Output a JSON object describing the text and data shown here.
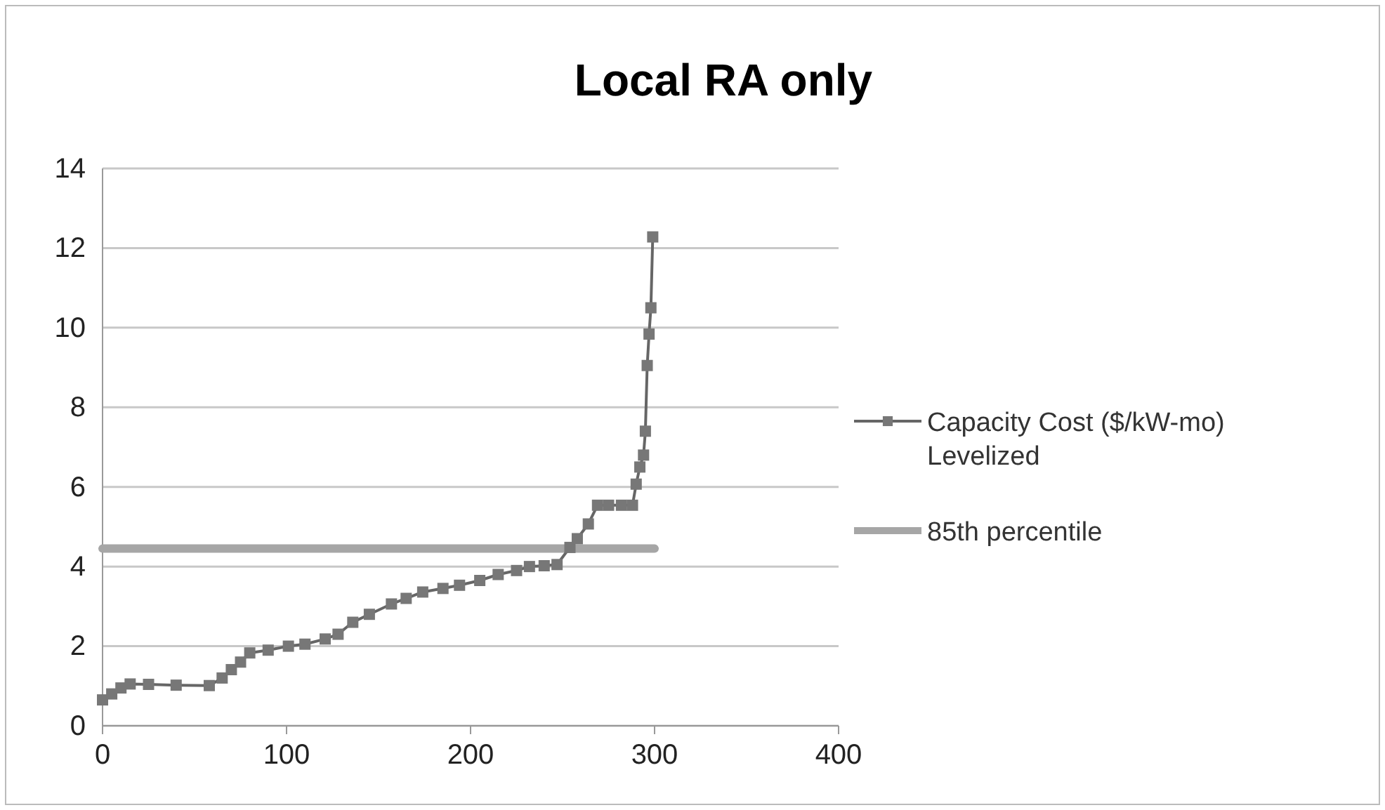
{
  "chart_data": {
    "type": "line",
    "title": "Local RA only",
    "xlim": [
      0,
      400
    ],
    "xticks": [
      0,
      100,
      200,
      300,
      400
    ],
    "ylim": [
      0,
      14
    ],
    "yticks": [
      0,
      2,
      4,
      6,
      8,
      10,
      12,
      14
    ],
    "grid": "y",
    "legend": "right",
    "marker": "square",
    "series": [
      {
        "name": "Capacity Cost ($/kW-mo) Levelized",
        "color": "#666666",
        "x": [
          0,
          5,
          10,
          15,
          25,
          40,
          58,
          65,
          70,
          75,
          80,
          90,
          101,
          110,
          121,
          128,
          136,
          145,
          157,
          165,
          174,
          185,
          194,
          205,
          215,
          225,
          232,
          240,
          247,
          254,
          258,
          264,
          269,
          275,
          282,
          288,
          290,
          292,
          294,
          295,
          296,
          297,
          298,
          299
        ],
        "values": [
          0.65,
          0.8,
          0.95,
          1.05,
          1.04,
          1.02,
          1.01,
          1.2,
          1.41,
          1.6,
          1.83,
          1.9,
          2.0,
          2.05,
          2.18,
          2.3,
          2.6,
          2.8,
          3.06,
          3.2,
          3.36,
          3.45,
          3.53,
          3.65,
          3.8,
          3.9,
          4.0,
          4.02,
          4.05,
          4.48,
          4.7,
          5.07,
          5.54,
          5.54,
          5.54,
          5.54,
          6.07,
          6.5,
          6.8,
          7.4,
          9.05,
          9.84,
          10.5,
          12.28
        ]
      },
      {
        "name": "85th percentile",
        "color": "#a6a6a6",
        "marker": "none",
        "x": [
          0,
          300
        ],
        "values": [
          4.45,
          4.45
        ]
      }
    ]
  }
}
